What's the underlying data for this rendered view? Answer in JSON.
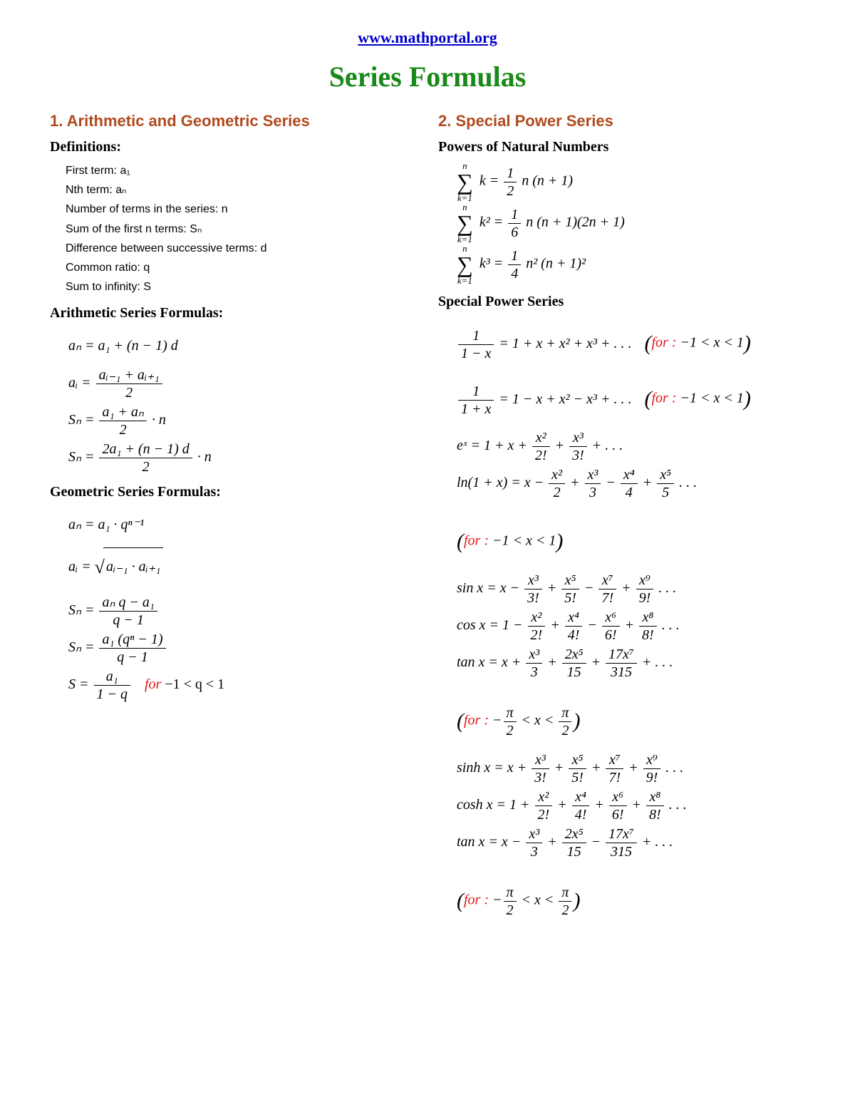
{
  "colors": {
    "link": "#0000cc",
    "title": "#198a19",
    "section": "#b04a1e",
    "condition": "#e01515",
    "text": "#000000",
    "background": "#ffffff"
  },
  "typography": {
    "title_fontsize": 40,
    "section_fontsize": 22,
    "subheading_fontsize": 20,
    "body_fontsize": 16,
    "formula_fontsize": 20,
    "link_fontsize": 22,
    "serif_family": "Times New Roman",
    "sans_family": "Arial"
  },
  "header": {
    "site_url": "www.mathportal.org",
    "page_title": "Series Formulas"
  },
  "left": {
    "heading": "1.  Arithmetic and Geometric Series",
    "definitions_title": "Definitions:",
    "definitions": [
      "First term: a₁",
      "Nth term: aₙ",
      "Number of terms in the series: n",
      "Sum of the first n terms: Sₙ",
      "Difference between successive terms: d",
      "Common ratio: q",
      "Sum to infinity: S"
    ],
    "arith_title": "Arithmetic Series Formulas:",
    "arith": {
      "f1_lhs": "aₙ =",
      "f1_rhs": "a₁ + (n − 1) d",
      "f2_lhs": "aᵢ =",
      "f2_num": "aᵢ₋₁ + aᵢ₊₁",
      "f2_den": "2",
      "f3_lhs": "Sₙ =",
      "f3_num": "a₁ + aₙ",
      "f3_den": "2",
      "f3_tail": " · n",
      "f4_lhs": "Sₙ =",
      "f4_num": "2a₁ + (n − 1) d",
      "f4_den": "2",
      "f4_tail": " · n"
    },
    "geom_title": "Geometric Series Formulas:",
    "geom": {
      "f1": "aₙ = a₁ · qⁿ⁻¹",
      "f2_lhs": "aᵢ = ",
      "f2_rad_inner": "aᵢ₋₁ · aᵢ₊₁",
      "f3_lhs": "Sₙ =",
      "f3_num": "aₙ q − a₁",
      "f3_den": "q − 1",
      "f4_lhs": "Sₙ =",
      "f4_num": "a₁ (qⁿ − 1)",
      "f4_den": "q − 1",
      "f5_lhs": "S =",
      "f5_num": "a₁",
      "f5_den": "1 − q",
      "f5_cond_for": "for",
      "f5_cond_body": "  −1 < q < 1"
    }
  },
  "right": {
    "heading": "2.  Special Power Series",
    "powers_title": "Powers of Natural Numbers",
    "powers": {
      "sum_upper": "n",
      "sum_lower": "k=1",
      "s1_term": "k =",
      "s1_num": "1",
      "s1_den": "2",
      "s1_tail": " n (n + 1)",
      "s2_term": "k² =",
      "s2_num": "1",
      "s2_den": "6",
      "s2_tail": " n (n + 1)(2n + 1)",
      "s3_term": "k³ =",
      "s3_num": "1",
      "s3_den": "4",
      "s3_tail": " n² (n + 1)²"
    },
    "sps_title": "Special Power Series",
    "sps": {
      "r1_num": "1",
      "r1_den": "1 − x",
      "r1_rhs": " = 1 + x + x² + x³ + . . .",
      "cond_open": "(",
      "cond_close": ")",
      "cond_for": "for",
      "cond_colon": " :",
      "cond_neg1x1": " −1 < x < 1",
      "r2_num": "1",
      "r2_den": "1 + x",
      "r2_rhs": " = 1 − x + x² − x³ + . . .",
      "r3_lhs": "eˣ = 1 + x + ",
      "r3_t1n": "x²",
      "r3_t1d": "2!",
      "r3_t2n": "x³",
      "r3_t2d": "3!",
      "r3_tail": " + . . .",
      "r4_lhs": "ln(1 + x) = x − ",
      "r4_t": [
        [
          "x²",
          "2"
        ],
        [
          "x³",
          "3"
        ],
        [
          "x⁴",
          "4"
        ],
        [
          "x⁵",
          "5"
        ]
      ],
      "r4_signs": [
        " + ",
        " − ",
        " + "
      ],
      "r4_tail": " . . .",
      "r5_lhs": "sin x = x − ",
      "r5_t": [
        [
          "x³",
          "3!"
        ],
        [
          "x⁵",
          "5!"
        ],
        [
          "x⁷",
          "7!"
        ],
        [
          "x⁹",
          "9!"
        ]
      ],
      "r5_signs": [
        " + ",
        " − ",
        " + "
      ],
      "r5_tail": " . . .",
      "r6_lhs": "cos x = 1 − ",
      "r6_t": [
        [
          "x²",
          "2!"
        ],
        [
          "x⁴",
          "4!"
        ],
        [
          "x⁶",
          "6!"
        ],
        [
          "x⁸",
          "8!"
        ]
      ],
      "r6_signs": [
        " + ",
        " − ",
        " + "
      ],
      "r6_tail": " . . .",
      "r7_lhs": "tan x = x + ",
      "r7_t": [
        [
          "x³",
          "3"
        ],
        [
          "2x⁵",
          "15"
        ],
        [
          "17x⁷",
          "315"
        ]
      ],
      "r7_signs": [
        " + ",
        " + "
      ],
      "r7_tail": " + . . .",
      "cond_pi_a": " −",
      "cond_pi_n1": "π",
      "cond_pi_d1": "2",
      "cond_pi_mid": " < x < ",
      "cond_pi_n2": "π",
      "cond_pi_d2": "2",
      "r8_lhs": "sinh x = x + ",
      "r8_t": [
        [
          "x³",
          "3!"
        ],
        [
          "x⁵",
          "5!"
        ],
        [
          "x⁷",
          "7!"
        ],
        [
          "x⁹",
          "9!"
        ]
      ],
      "r8_signs": [
        " + ",
        " + ",
        " + "
      ],
      "r8_tail": " . . .",
      "r9_lhs": "cosh x = 1 + ",
      "r9_t": [
        [
          "x²",
          "2!"
        ],
        [
          "x⁴",
          "4!"
        ],
        [
          "x⁶",
          "6!"
        ],
        [
          "x⁸",
          "8!"
        ]
      ],
      "r9_signs": [
        " + ",
        " + ",
        " + "
      ],
      "r9_tail": " . . .",
      "r10_lhs": "tan x = x − ",
      "r10_t": [
        [
          "x³",
          "3"
        ],
        [
          "2x⁵",
          "15"
        ],
        [
          "17x⁷",
          "315"
        ]
      ],
      "r10_signs": [
        " + ",
        " − "
      ],
      "r10_tail": " + . . ."
    }
  }
}
